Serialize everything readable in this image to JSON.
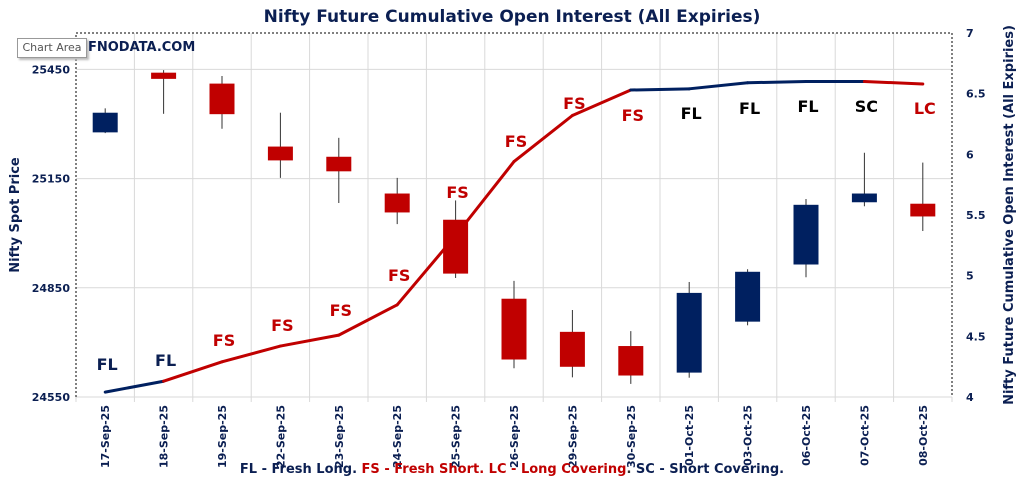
{
  "chart_data": {
    "type": "candlestick+line",
    "title": "Nifty Future Cumulative Open Interest (All Expiries)",
    "watermark": "FNODATA.COM",
    "tooltip": "Chart Area",
    "ylabel_left": "Nifty Spot Price",
    "ylabel_right": "Nifty Future Cumulative Open Interest (All Expiries)",
    "ylim_left": [
      24550,
      25550
    ],
    "yticks_left": [
      24550,
      24850,
      25150,
      25450
    ],
    "ylim_right": [
      4,
      7
    ],
    "yticks_right": [
      "4",
      "4.5",
      "5",
      "5.5",
      "6",
      "6.5",
      "7"
    ],
    "grid": true,
    "categories": [
      "17-Sep-25",
      "18-Sep-25",
      "19-Sep-25",
      "22-Sep-25",
      "23-Sep-25",
      "24-Sep-25",
      "25-Sep-25",
      "26-Sep-25",
      "29-Sep-25",
      "30-Sep-25",
      "01-Oct-25",
      "03-Oct-25",
      "06-Oct-25",
      "07-Oct-25",
      "08-Oct-25"
    ],
    "ohlc": [
      {
        "o": 25277,
        "h": 25343,
        "l": 25275,
        "c": 25331
      },
      {
        "o": 25441,
        "h": 25448,
        "l": 25328,
        "c": 25424
      },
      {
        "o": 25411,
        "h": 25432,
        "l": 25287,
        "c": 25327
      },
      {
        "o": 25238,
        "h": 25331,
        "l": 25152,
        "c": 25200
      },
      {
        "o": 25210,
        "h": 25262,
        "l": 25083,
        "c": 25170
      },
      {
        "o": 25109,
        "h": 25152,
        "l": 25025,
        "c": 25057
      },
      {
        "o": 25037,
        "h": 25090,
        "l": 24877,
        "c": 24889
      },
      {
        "o": 24820,
        "h": 24869,
        "l": 24629,
        "c": 24653
      },
      {
        "o": 24729,
        "h": 24789,
        "l": 24604,
        "c": 24633
      },
      {
        "o": 24690,
        "h": 24731,
        "l": 24586,
        "c": 24609
      },
      {
        "o": 24617,
        "h": 24866,
        "l": 24603,
        "c": 24836
      },
      {
        "o": 24757,
        "h": 24901,
        "l": 24747,
        "c": 24894
      },
      {
        "o": 24914,
        "h": 25094,
        "l": 24879,
        "c": 25078
      },
      {
        "o": 25085,
        "h": 25221,
        "l": 25074,
        "c": 25109
      },
      {
        "o": 25081,
        "h": 25194,
        "l": 25006,
        "c": 25046
      }
    ],
    "open_interest": [
      4.04,
      4.13,
      4.29,
      4.42,
      4.51,
      4.76,
      5.33,
      5.94,
      6.32,
      6.53,
      6.54,
      6.59,
      6.6,
      6.6,
      6.58
    ],
    "actions": [
      "FL",
      "FL",
      "FS",
      "FS",
      "FS",
      "FS",
      "FS",
      "FS",
      "FS",
      "FS",
      "FL",
      "FL",
      "FL",
      "SC",
      "LC"
    ],
    "action_colors": [
      "#0b1f52",
      "#0b1f52",
      "#c00000",
      "#c00000",
      "#c00000",
      "#c00000",
      "#c00000",
      "#c00000",
      "#c00000",
      "#c00000",
      "#000000",
      "#000000",
      "#000000",
      "#000000",
      "#c00000"
    ],
    "colors": {
      "up": "#002060",
      "down": "#c00000",
      "title": "#0b1f52"
    }
  },
  "legend": [
    {
      "text": "FL - Fresh Long. ",
      "color": "#0b1f52"
    },
    {
      "text": "FS - Fresh Short. LC - Long Covering",
      "color": "#c00000"
    },
    {
      "text": ". ",
      "color": "#333333"
    },
    {
      "text": "SC - Short Covering.",
      "color": "#0b1f52"
    }
  ]
}
